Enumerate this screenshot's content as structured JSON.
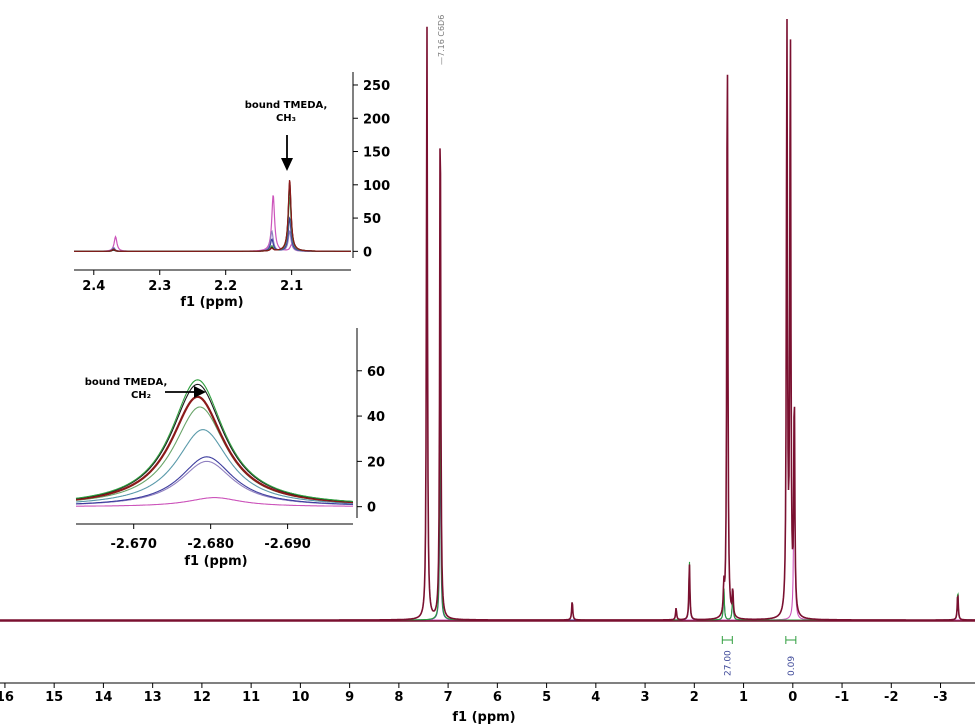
{
  "chart_data": [
    {
      "type": "line",
      "role": "main_spectrum",
      "xlabel": "f1 (ppm)",
      "ticks": [
        "16",
        "15",
        "14",
        "13",
        "12",
        "11",
        "10",
        "9",
        "8",
        "7",
        "6",
        "5",
        "4",
        "3",
        "2",
        "1",
        "0",
        "-1",
        "-2",
        "-3"
      ],
      "xlim": [
        16.1,
        -3.7
      ],
      "peak_label": "—7.16 C6D6",
      "integrals": [
        {
          "center": 1.33,
          "label": "27.00"
        },
        {
          "center": 0.04,
          "label": "0.09"
        }
      ],
      "series": [
        {
          "color": "#7a1030",
          "peaks": [
            [
              7.43,
              200
            ],
            [
              7.16,
              180
            ],
            [
              1.33,
              200
            ],
            [
              0.12,
              200
            ],
            [
              0.05,
              200
            ],
            [
              -0.03,
              75
            ],
            [
              4.48,
              6.5
            ],
            [
              2.1,
              19
            ],
            [
              1.4,
              9
            ],
            [
              1.22,
              9
            ],
            [
              2.37,
              4
            ],
            [
              -3.35,
              9
            ]
          ]
        },
        {
          "color": "#2e9e3e",
          "peaks": [
            [
              7.16,
              88
            ],
            [
              2.1,
              20
            ],
            [
              1.4,
              11
            ],
            [
              1.22,
              10
            ],
            [
              4.48,
              6.5
            ],
            [
              -3.35,
              10
            ]
          ]
        },
        {
          "color": "#3d3d9e",
          "peaks": [
            [
              7.16,
              70
            ],
            [
              2.1,
              16
            ],
            [
              1.4,
              10
            ],
            [
              1.22,
              9
            ],
            [
              -3.35,
              9
            ]
          ]
        },
        {
          "color": "#cc55bb",
          "peaks": [
            [
              2.37,
              4
            ],
            [
              -0.03,
              75
            ]
          ]
        }
      ]
    },
    {
      "type": "line",
      "role": "inset_top",
      "xlabel": "f1 (ppm)",
      "xlim": [
        2.43,
        2.01
      ],
      "xticks": [
        2.4,
        2.3,
        2.2,
        2.1
      ],
      "ylim": [
        -10,
        265
      ],
      "yticks": [
        0,
        50,
        100,
        150,
        200,
        250
      ],
      "annotation": [
        "bound TMEDA,",
        "CH₃"
      ],
      "series": [
        {
          "color": "#8b1a1a",
          "values": [
            [
              2.37,
              3
            ],
            [
              2.13,
              4
            ],
            [
              2.103,
              108
            ]
          ]
        },
        {
          "color": "#1a1a1a",
          "values": [
            [
              2.37,
              2
            ],
            [
              2.13,
              5
            ],
            [
              2.103,
              104
            ]
          ]
        },
        {
          "color": "#2e9e3e",
          "values": [
            [
              2.37,
              3
            ],
            [
              2.13,
              6
            ],
            [
              2.103,
              98
            ]
          ]
        },
        {
          "color": "#6aa56a",
          "values": [
            [
              2.37,
              2
            ],
            [
              2.13,
              8
            ],
            [
              2.103,
              82
            ]
          ]
        },
        {
          "color": "#3d3d9e",
          "values": [
            [
              2.37,
              4
            ],
            [
              2.13,
              18
            ],
            [
              2.103,
              50
            ]
          ]
        },
        {
          "color": "#9080c0",
          "values": [
            [
              2.37,
              6
            ],
            [
              2.13,
              30
            ],
            [
              2.103,
              30
            ]
          ]
        },
        {
          "color": "#cc55bb",
          "values": [
            [
              2.367,
              22
            ],
            [
              2.128,
              85
            ],
            [
              2.1,
              10
            ]
          ]
        }
      ]
    },
    {
      "type": "line",
      "role": "inset_bottom",
      "xlabel": "f1 (ppm)",
      "xlim": [
        -2.6625,
        -2.6985
      ],
      "xticks": [
        -2.67,
        -2.68,
        -2.69
      ],
      "xticklabels": [
        "-2.670",
        "-2.680",
        "-2.690"
      ],
      "ylim": [
        -5,
        78
      ],
      "yticks": [
        0,
        20,
        40,
        60
      ],
      "annotation": [
        "bound TMEDA,",
        "CH₂"
      ],
      "series": [
        {
          "color": "#2e9e3e",
          "center": -2.6783,
          "height": 56
        },
        {
          "color": "#1a1a1a",
          "center": -2.6783,
          "height": 54
        },
        {
          "color": "#8b1a1a",
          "center": -2.6783,
          "height": 48.5
        },
        {
          "color": "#6aa56a",
          "center": -2.6786,
          "height": 44
        },
        {
          "color": "#5a9aaa",
          "center": -2.679,
          "height": 34
        },
        {
          "color": "#3d3d9e",
          "center": -2.6795,
          "height": 22
        },
        {
          "color": "#9080c0",
          "center": -2.6795,
          "height": 20
        },
        {
          "color": "#cc55bb",
          "center": -2.6805,
          "height": 4
        }
      ]
    }
  ]
}
